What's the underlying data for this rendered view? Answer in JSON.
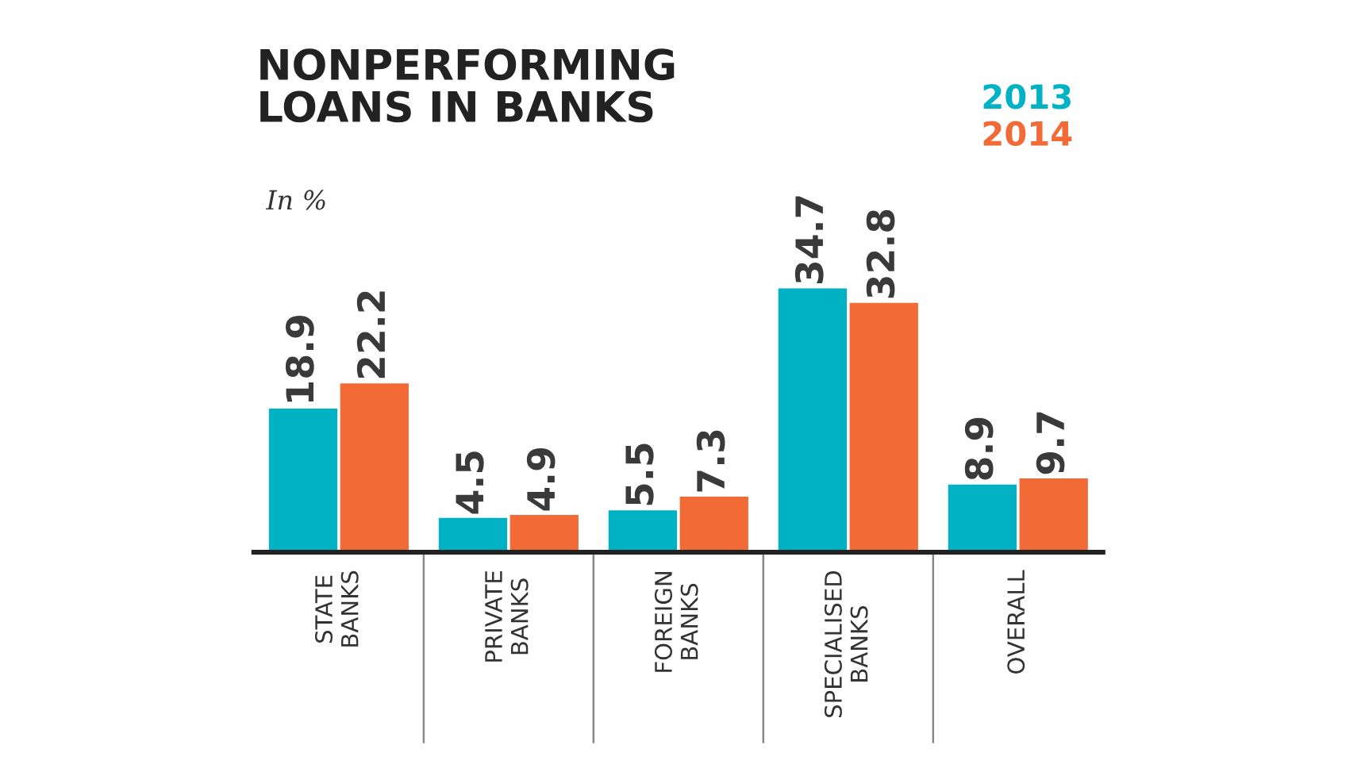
{
  "chart_data": {
    "type": "bar",
    "title": "NONPERFORMING\nLOANS IN BANKS",
    "subtitle": "In %",
    "categories": [
      "STATE\nBANKS",
      "PRIVATE\nBANKS",
      "FOREIGN\nBANKS",
      "SPECIALISED\nBANKS",
      "OVERALL"
    ],
    "series": [
      {
        "name": "2013",
        "color": "#00b2c4",
        "values": [
          18.9,
          4.5,
          5.5,
          34.7,
          8.9
        ]
      },
      {
        "name": "2014",
        "color": "#f26a36",
        "values": [
          22.2,
          4.9,
          7.3,
          32.8,
          9.7
        ]
      }
    ],
    "data_labels": true,
    "legend": "top right",
    "tick_labels": "x",
    "grid": false
  }
}
